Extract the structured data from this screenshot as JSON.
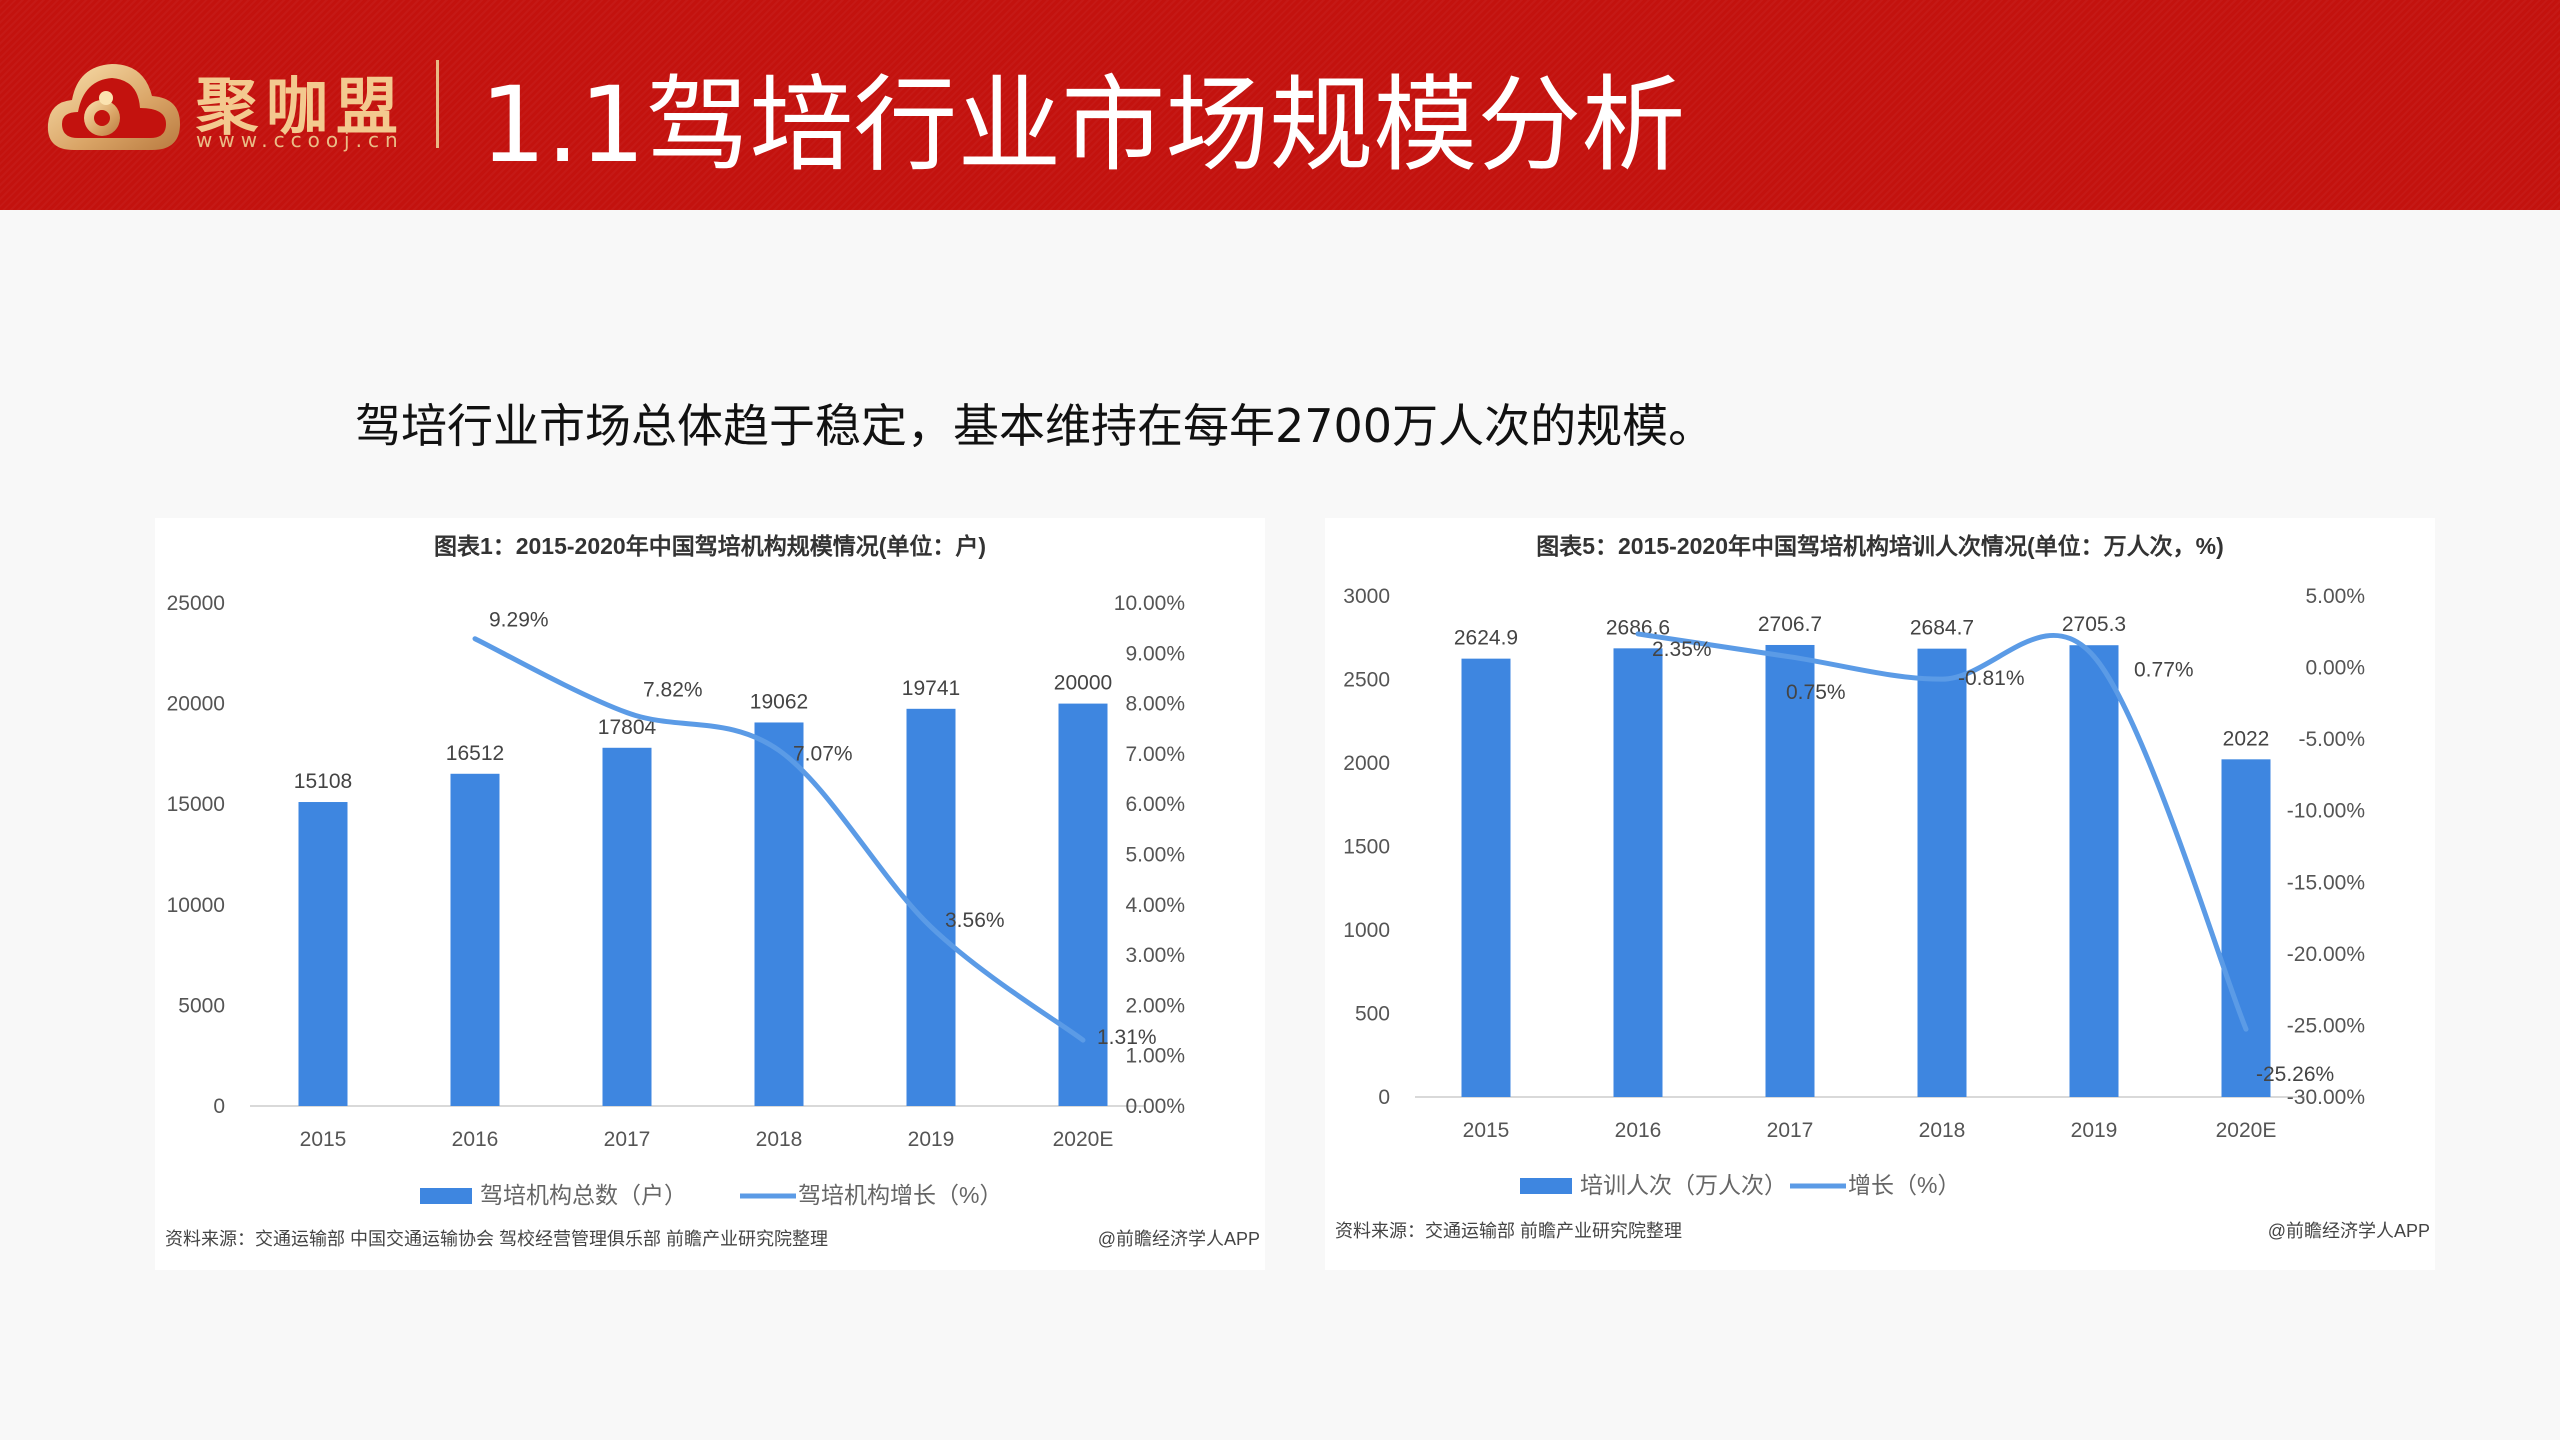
{
  "header": {
    "brand": "聚咖盟",
    "url": "www.ccooj.cn",
    "title": "1.1驾培行业市场规模分析",
    "colors": {
      "background": "#c3120e",
      "brand": "#f3c98f"
    }
  },
  "subtitle": "驾培行业市场总体趋于稳定，基本维持在每年2700万人次的规模。",
  "chart_data": [
    {
      "type": "bar+line",
      "title": "图表1：2015-2020年中国驾培机构规模情况(单位：户)",
      "categories": [
        "2015",
        "2016",
        "2017",
        "2018",
        "2019",
        "2020E"
      ],
      "series": [
        {
          "name": "驾培机构总数（户）",
          "type": "bar",
          "axis": "left",
          "values": [
            15108,
            16512,
            17804,
            19062,
            19741,
            20000
          ],
          "labels": [
            "15108",
            "16512",
            "17804",
            "19062",
            "19741",
            "20000"
          ],
          "color": "#3e86e0"
        },
        {
          "name": "驾培机构增长（%）",
          "type": "line",
          "axis": "right",
          "values": [
            null,
            9.29,
            7.82,
            7.07,
            3.56,
            1.31
          ],
          "labels": [
            "",
            "9.29%",
            "7.82%",
            "7.07%",
            "3.56%",
            "1.31%"
          ],
          "color": "#5b9be6"
        }
      ],
      "left_axis": {
        "range": [
          0,
          25000
        ],
        "ticks": [
          "0",
          "5000",
          "10000",
          "15000",
          "20000",
          "25000"
        ]
      },
      "right_axis": {
        "range": [
          0,
          10
        ],
        "ticks": [
          "0.00%",
          "1.00%",
          "2.00%",
          "3.00%",
          "4.00%",
          "5.00%",
          "6.00%",
          "7.00%",
          "8.00%",
          "9.00%",
          "10.00%"
        ]
      },
      "legend": "bottom",
      "grid": false,
      "source": "资料来源：交通运输部 中国交通运输协会 驾校经营管理俱乐部 前瞻产业研究院整理",
      "credit": "@前瞻经济学人APP"
    },
    {
      "type": "bar+line",
      "title": "图表5：2015-2020年中国驾培机构培训人次情况(单位：万人次，%)",
      "categories": [
        "2015",
        "2016",
        "2017",
        "2018",
        "2019",
        "2020E"
      ],
      "series": [
        {
          "name": "培训人次（万人次）",
          "type": "bar",
          "axis": "left",
          "values": [
            2624.9,
            2686.6,
            2706.7,
            2684.7,
            2705.3,
            2022
          ],
          "labels": [
            "2624.9",
            "2686.6",
            "2706.7",
            "2684.7",
            "2705.3",
            "2022"
          ],
          "color": "#3e86e0"
        },
        {
          "name": "增长（%）",
          "type": "line",
          "axis": "right",
          "values": [
            null,
            2.35,
            0.75,
            -0.81,
            0.77,
            -25.26
          ],
          "labels": [
            "",
            "2.35%",
            "0.75%",
            "-0.81%",
            "0.77%",
            "-25.26%"
          ],
          "color": "#5b9be6"
        }
      ],
      "left_axis": {
        "range": [
          0,
          3000
        ],
        "ticks": [
          "0",
          "500",
          "1000",
          "1500",
          "2000",
          "2500",
          "3000"
        ]
      },
      "right_axis": {
        "range": [
          -30,
          5
        ],
        "ticks": [
          "-30.00%",
          "-25.00%",
          "-20.00%",
          "-15.00%",
          "-10.00%",
          "-5.00%",
          "0.00%",
          "5.00%"
        ]
      },
      "legend": "bottom",
      "grid": false,
      "source": "资料来源：交通运输部 前瞻产业研究院整理",
      "credit": "@前瞻经济学人APP"
    }
  ]
}
